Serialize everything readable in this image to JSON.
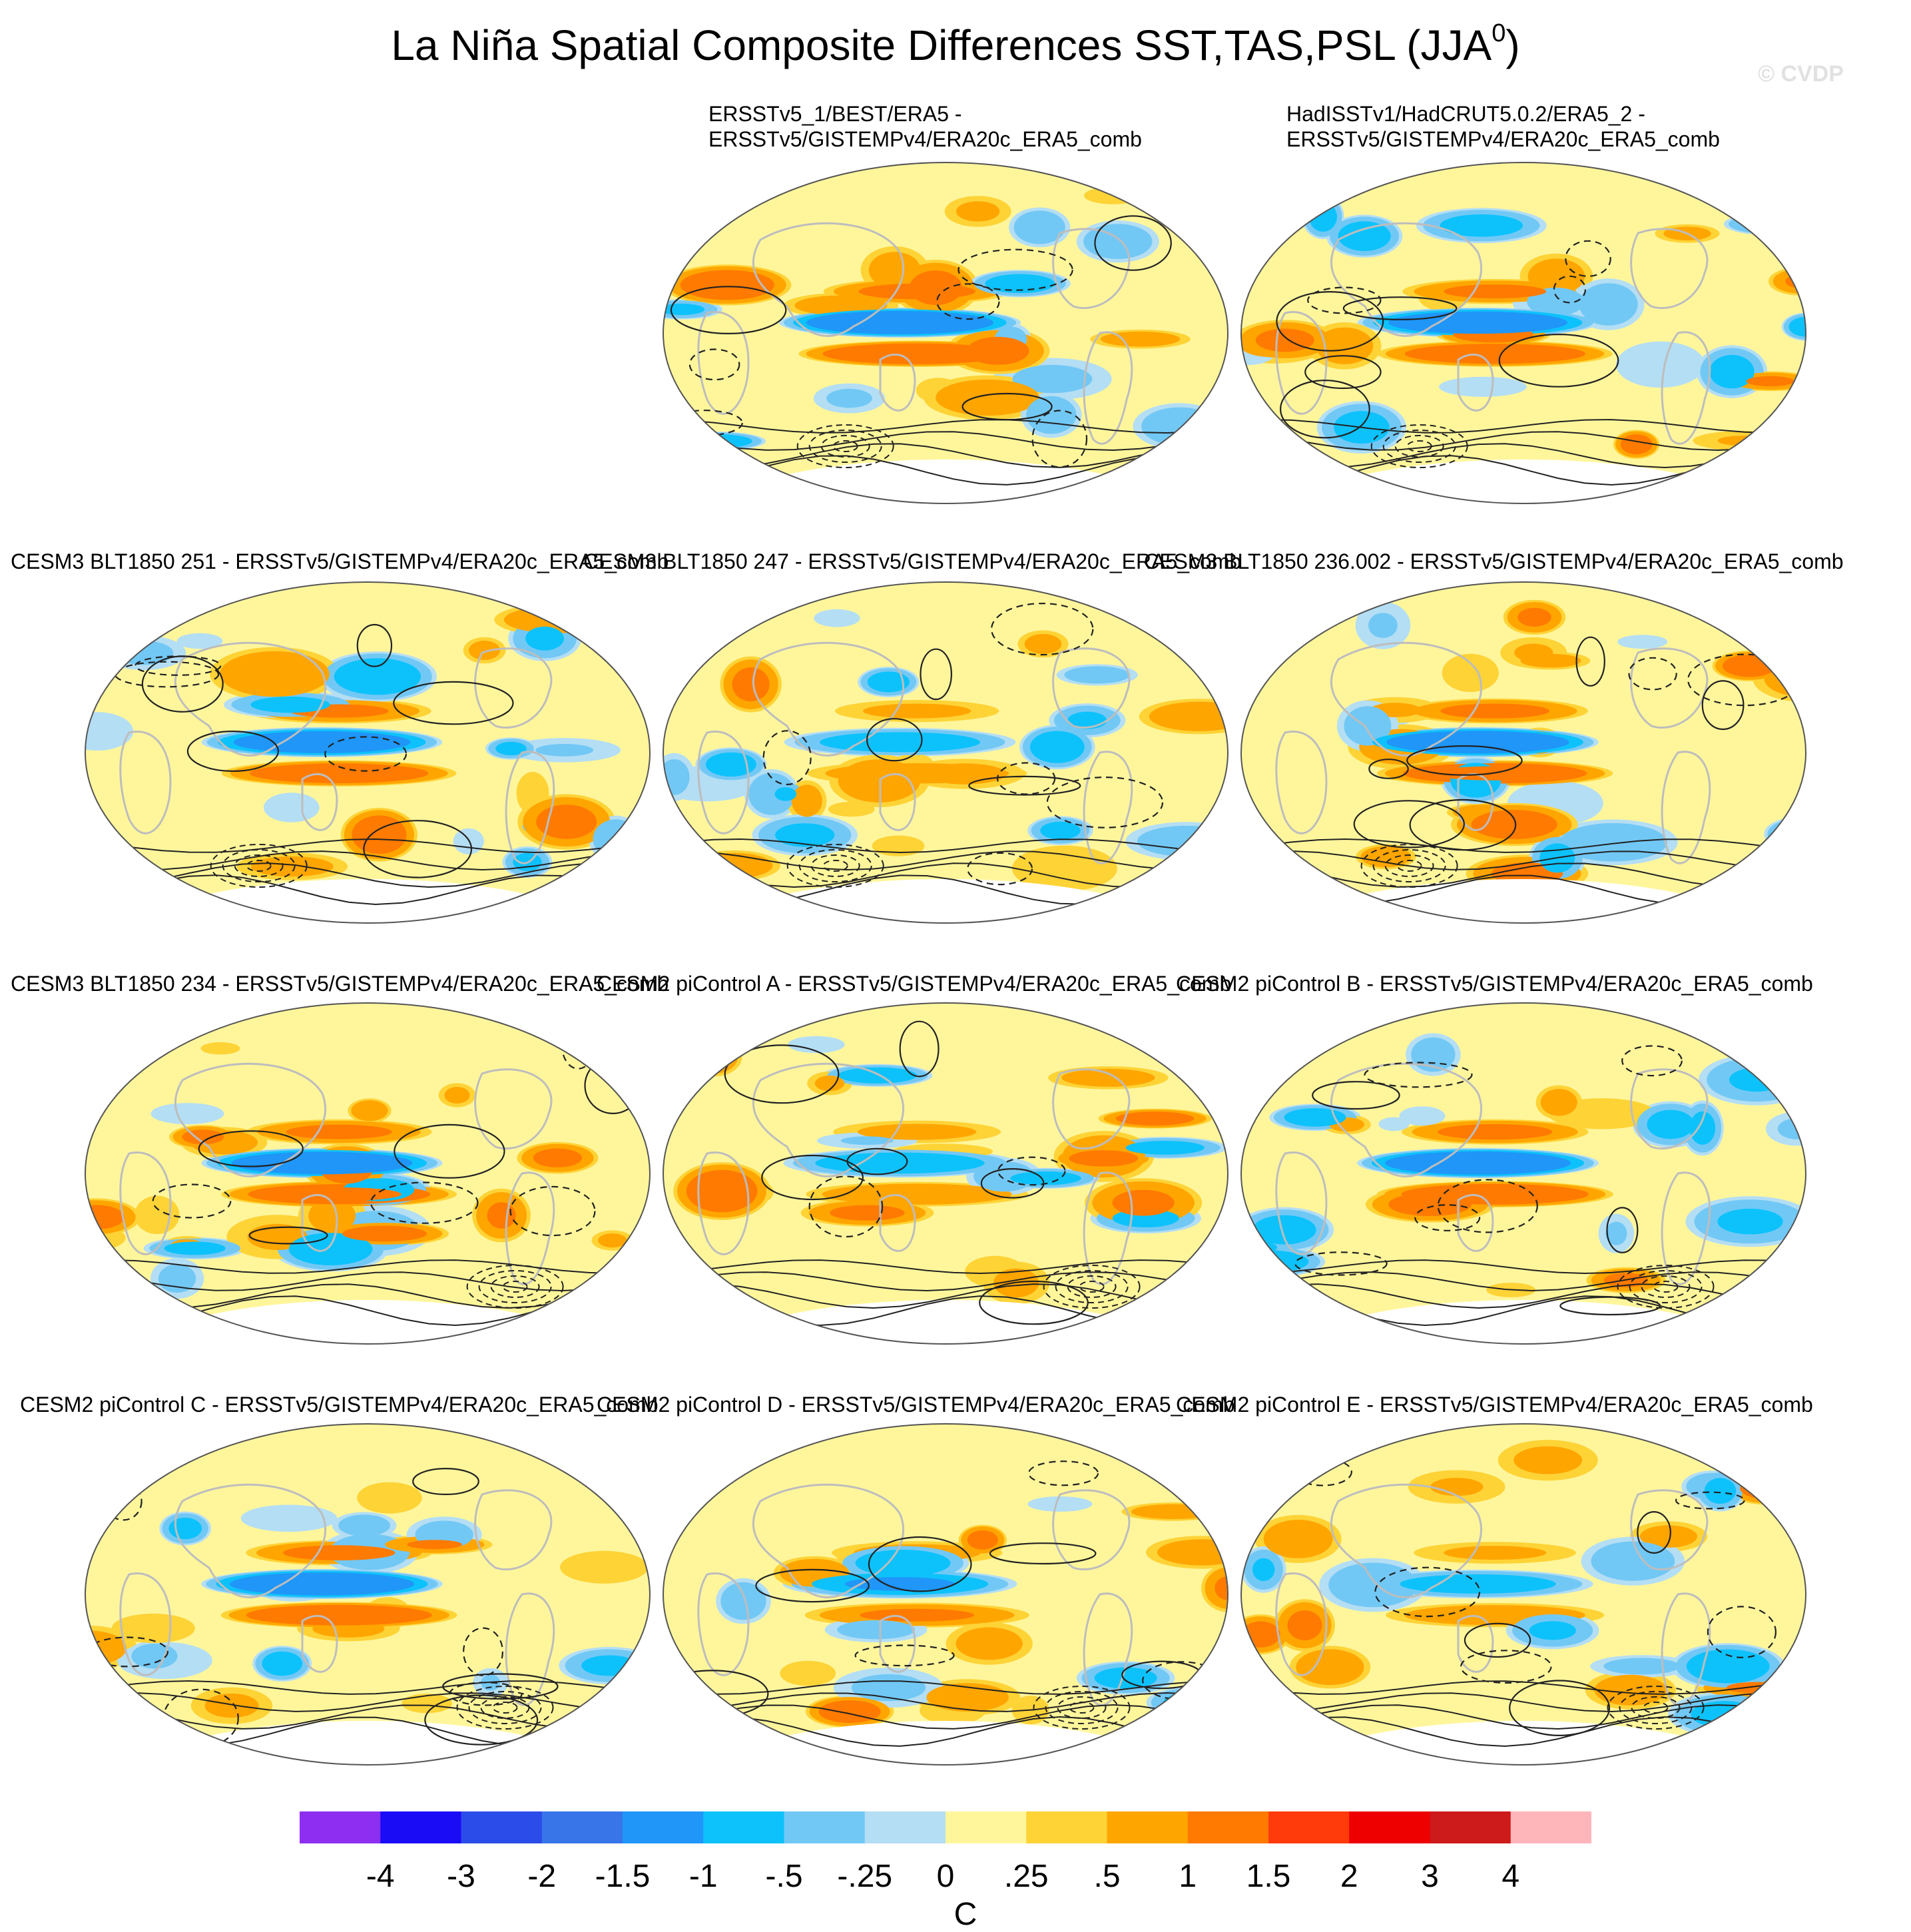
{
  "title": {
    "main": "La Niña Spatial Composite Differences SST,TAS,PSL (JJA",
    "sup": "0",
    "close": ")"
  },
  "watermark": "© CVDP",
  "colors": {
    "land_outline": "#bdbdbd",
    "contour": "#222222",
    "antarctica": "#ffffff"
  },
  "panels": [
    {
      "label_line1": "ERSSTv5_1/BEST/ERA5 -",
      "label_line2": "ERSSTv5/GISTEMPv4/ERA20c_ERA5_comb",
      "seed": 11
    },
    {
      "label_line1": "HadISSTv1/HadCRUT5.0.2/ERA5_2 -",
      "label_line2": "ERSSTv5/GISTEMPv4/ERA20c_ERA5_comb",
      "seed": 23
    },
    {
      "label": "CESM3 BLT1850 251 - ERSSTv5/GISTEMPv4/ERA20c_ERA5_comb",
      "seed": 37
    },
    {
      "label": "CESM3 BLT1850 247 - ERSSTv5/GISTEMPv4/ERA20c_ERA5_comb",
      "seed": 41
    },
    {
      "label": "CESM3 BLT1850 236.002 - ERSSTv5/GISTEMPv4/ERA20c_ERA5_comb",
      "seed": 53
    },
    {
      "label": "CESM3 BLT1850 234 - ERSSTv5/GISTEMPv4/ERA20c_ERA5_comb",
      "seed": 67
    },
    {
      "label": "CESM2 piControl A - ERSSTv5/GISTEMPv4/ERA20c_ERA5_comb",
      "seed": 71
    },
    {
      "label": "CESM2 piControl B - ERSSTv5/GISTEMPv4/ERA20c_ERA5_comb",
      "seed": 83
    },
    {
      "label": "CESM2 piControl C - ERSSTv5/GISTEMPv4/ERA20c_ERA5_comb",
      "seed": 97
    },
    {
      "label": "CESM2 piControl D - ERSSTv5/GISTEMPv4/ERA20c_ERA5_comb",
      "seed": 101
    },
    {
      "label": "CESM2 piControl E - ERSSTv5/GISTEMPv4/ERA20c_ERA5_comb",
      "seed": 113
    }
  ],
  "colorbar": {
    "colors": [
      "#8e2ef0",
      "#1a0cf5",
      "#2b4ce8",
      "#3875e8",
      "#1f96f8",
      "#0dc2fb",
      "#72c8f5",
      "#b4def4",
      "#fff69c",
      "#fed336",
      "#ffa500",
      "#ff7a00",
      "#ff3a0b",
      "#ee0000",
      "#cd1a1a",
      "#ffb6ba"
    ],
    "ticks": [
      "-4",
      "-3",
      "-2",
      "-1.5",
      "-1",
      "-.5",
      "-.25",
      "0",
      ".25",
      ".5",
      "1",
      "1.5",
      "2",
      "3",
      "4"
    ],
    "units": "C"
  }
}
